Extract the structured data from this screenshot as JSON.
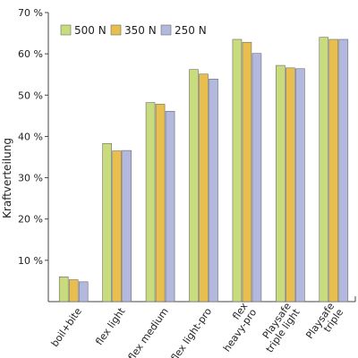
{
  "chart_data": {
    "type": "bar",
    "title": "",
    "xlabel": "",
    "ylabel": "Kraftverteilung",
    "ylim": [
      0,
      70
    ],
    "yticks": [
      10,
      20,
      30,
      40,
      50,
      60,
      70
    ],
    "ytick_suffix": " %",
    "grid": false,
    "legend": "top-left",
    "categories": [
      [
        "boil+bite"
      ],
      [
        "flex light"
      ],
      [
        "flex medium"
      ],
      [
        "flex light-pro"
      ],
      [
        "flex",
        "heavy-pro"
      ],
      [
        "Playsafe",
        "triple light"
      ],
      [
        "Playsafe",
        "triple"
      ]
    ],
    "series": [
      {
        "name": "500 N",
        "color": "#c8dc7e",
        "values": [
          6.0,
          38.3,
          48.2,
          56.2,
          63.5,
          57.2,
          64.0
        ]
      },
      {
        "name": "350 N",
        "color": "#e8bf4f",
        "values": [
          5.3,
          36.5,
          47.8,
          55.1,
          62.8,
          56.6,
          63.5
        ]
      },
      {
        "name": "250 N",
        "color": "#b3b8df",
        "values": [
          4.8,
          36.6,
          46.1,
          53.9,
          60.1,
          56.4,
          63.5
        ]
      }
    ]
  }
}
